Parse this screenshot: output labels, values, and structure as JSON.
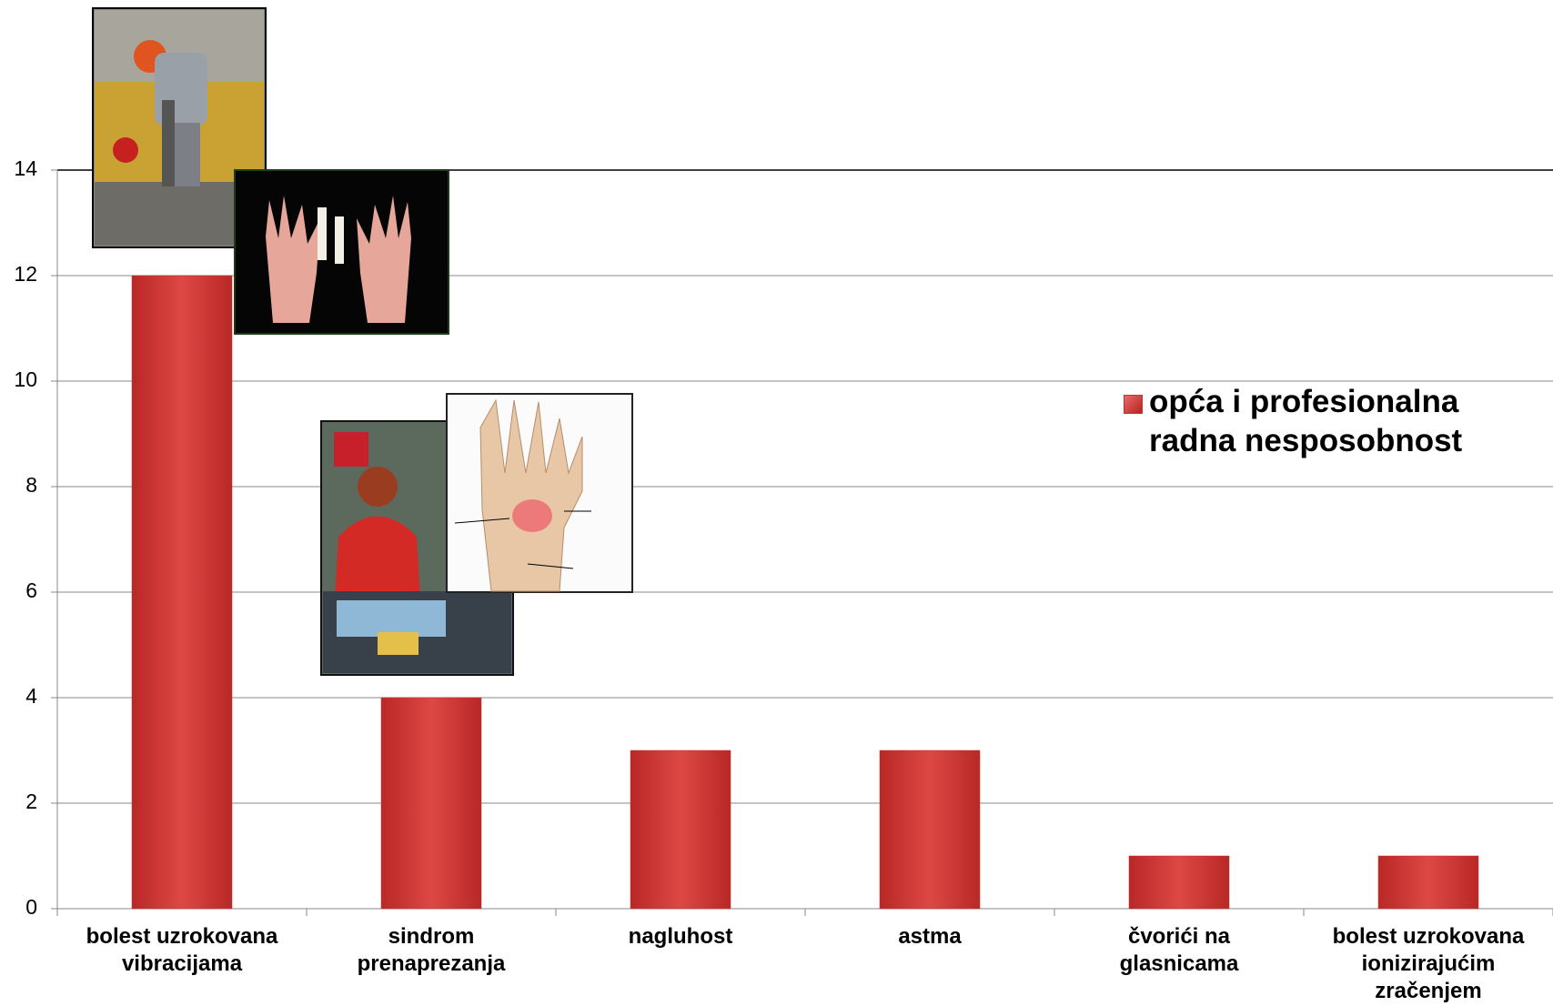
{
  "chart_data": {
    "type": "bar",
    "categories": [
      "bolest uzrokovana vibracijama",
      "sindrom prenaprezanja",
      "nagluhost",
      "astma",
      "čvorići na glasnicama",
      "bolest uzrokovana ionizirajućim zračenjem"
    ],
    "series": [
      {
        "name": "opća i profesionalna radna nesposobnost",
        "color": "#c9302e",
        "values": [
          12,
          4,
          3,
          3,
          1,
          1
        ]
      }
    ],
    "ylim": [
      0,
      14
    ],
    "yticks": [
      0,
      2,
      4,
      6,
      8,
      10,
      12,
      14
    ],
    "grid": true,
    "legend": "right"
  }
}
